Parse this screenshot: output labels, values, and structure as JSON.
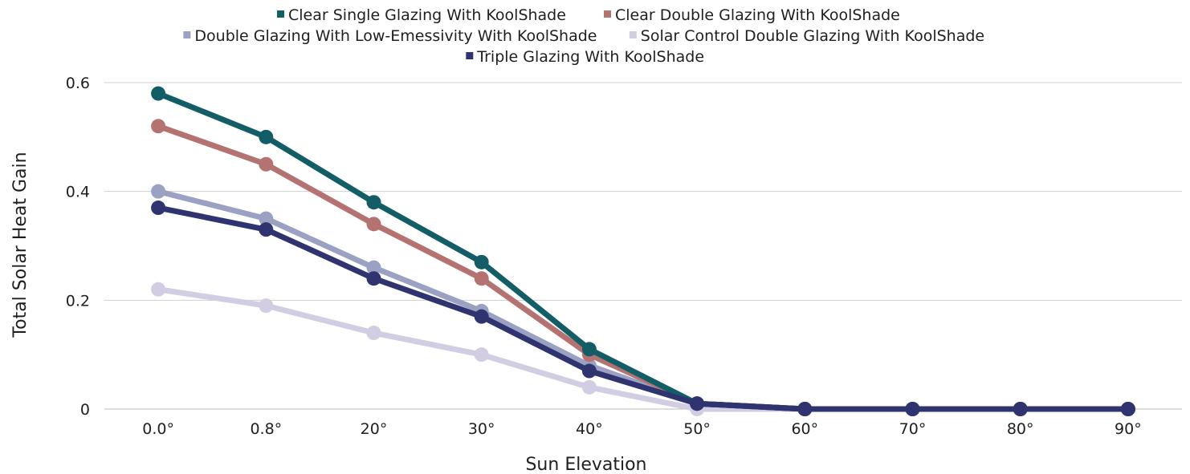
{
  "chart_data": {
    "type": "line",
    "xlabel": "Sun Elevation",
    "ylabel": "Total Solar Heat Gain",
    "categories": [
      "0.0°",
      "0.8°",
      "20°",
      "30°",
      "40°",
      "50°",
      "60°",
      "70°",
      "80°",
      "90°"
    ],
    "ylim": [
      0,
      0.6
    ],
    "yticks": [
      0,
      0.2,
      0.4,
      0.6
    ],
    "ytick_labels": [
      "0",
      "0.2",
      "0.4",
      "0.6"
    ],
    "grid": true,
    "legend_position": "top",
    "series": [
      {
        "name": "Clear Single Glazing With KoolShade",
        "color": "#135e66",
        "values": [
          0.58,
          0.5,
          0.38,
          0.27,
          0.11,
          0.01,
          0,
          0,
          0,
          0
        ]
      },
      {
        "name": "Clear Double Glazing With KoolShade",
        "color": "#b47371",
        "values": [
          0.52,
          0.45,
          0.34,
          0.24,
          0.1,
          0.01,
          0,
          0,
          0,
          0
        ]
      },
      {
        "name": "Double Glazing With Low-Emessivity With KoolShade",
        "color": "#9aa1c3",
        "values": [
          0.4,
          0.35,
          0.26,
          0.18,
          0.08,
          0.01,
          0,
          0,
          0,
          0
        ]
      },
      {
        "name": "Solar Control Double Glazing With KoolShade",
        "color": "#d2cde3",
        "values": [
          0.22,
          0.19,
          0.14,
          0.1,
          0.04,
          0.0,
          0,
          0,
          0,
          0
        ]
      },
      {
        "name": "Triple Glazing With KoolShade",
        "color": "#2f3470",
        "values": [
          0.37,
          0.33,
          0.24,
          0.17,
          0.07,
          0.01,
          0,
          0,
          0,
          0
        ]
      }
    ]
  }
}
